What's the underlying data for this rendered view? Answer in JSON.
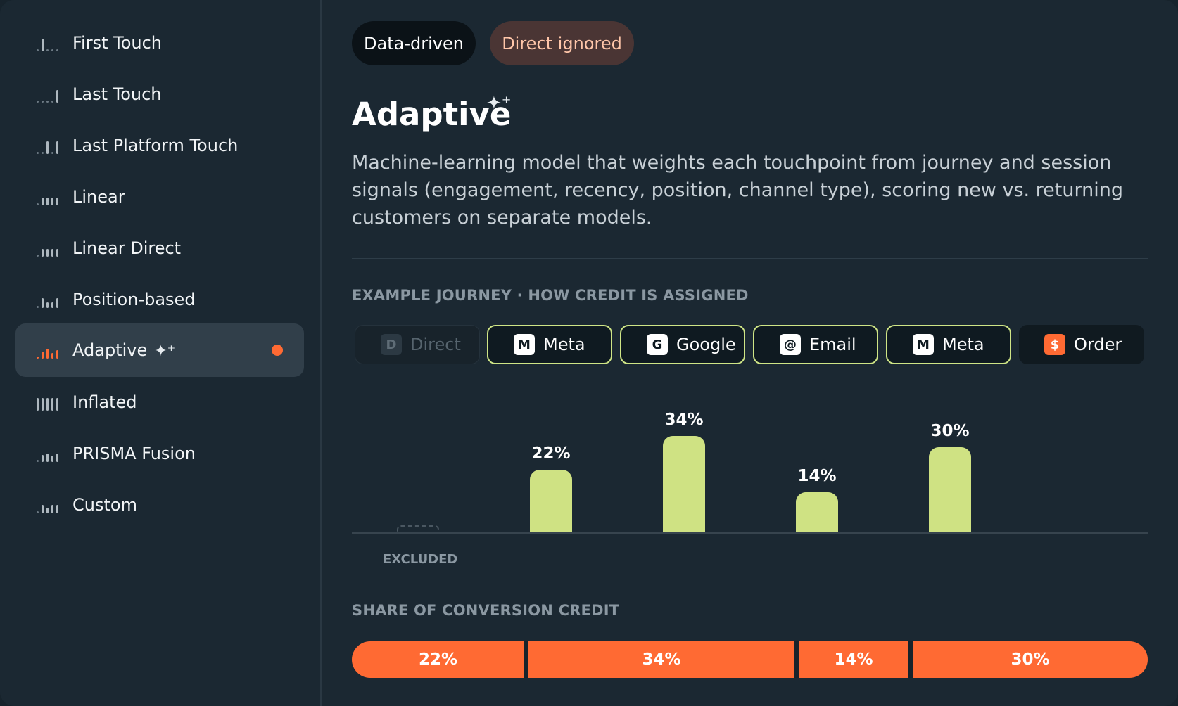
{
  "sidebar": {
    "items": [
      {
        "label": "First Touch",
        "icon": "first-touch-bars-icon"
      },
      {
        "label": "Last Touch",
        "icon": "last-touch-bars-icon"
      },
      {
        "label": "Last Platform Touch",
        "icon": "last-platform-touch-bars-icon"
      },
      {
        "label": "Linear",
        "icon": "linear-bars-icon"
      },
      {
        "label": "Linear Direct",
        "icon": "linear-direct-bars-icon"
      },
      {
        "label": "Position-based",
        "icon": "position-based-bars-icon"
      },
      {
        "label": "Adaptive",
        "icon": "adaptive-bars-icon",
        "selected": true,
        "sparkle": "✦⁺"
      },
      {
        "label": "Inflated",
        "icon": "inflated-bars-icon"
      },
      {
        "label": "PRISMA Fusion",
        "icon": "prisma-fusion-bars-icon"
      },
      {
        "label": "Custom",
        "icon": "custom-bars-icon"
      }
    ]
  },
  "main": {
    "tags": [
      "Data-driven",
      "Direct ignored"
    ],
    "title": "Adaptive",
    "title_sparkle": "✦⁺",
    "description": "Machine-learning model that weights each touchpoint from journey and session signals (engagement, recency, position, channel type), scoring new vs. returning customers on separate models.",
    "journey_label": "EXAMPLE JOURNEY · HOW CREDIT IS ASSIGNED",
    "journey": [
      {
        "badge": "D",
        "label": "Direct",
        "state": "excluded"
      },
      {
        "badge": "M",
        "label": "Meta",
        "state": "credited"
      },
      {
        "badge": "G",
        "label": "Google",
        "state": "credited"
      },
      {
        "badge": "@",
        "label": "Email",
        "state": "credited"
      },
      {
        "badge": "M",
        "label": "Meta",
        "state": "credited"
      },
      {
        "badge": "$",
        "label": "Order",
        "state": "conversion"
      }
    ],
    "excluded_label": "EXCLUDED",
    "share_label": "SHARE OF CONVERSION CREDIT"
  },
  "colors": {
    "accent": "#ff6a33",
    "credited_bar": "#cfe283",
    "credited_border": "#cfe586",
    "background": "#1b2832"
  },
  "chart_data": [
    {
      "type": "bar",
      "categories": [
        "Direct",
        "Meta",
        "Google",
        "Email",
        "Meta"
      ],
      "values": [
        0,
        22,
        34,
        14,
        30
      ],
      "data_labels": [
        "",
        "22%",
        "34%",
        "14%",
        "30%"
      ],
      "unit": "%",
      "ylim": [
        0,
        40
      ],
      "grid": false
    },
    {
      "type": "bar",
      "orientation": "horizontal-stacked",
      "categories": [
        "Meta",
        "Google",
        "Email",
        "Meta"
      ],
      "values": [
        22,
        34,
        14,
        30
      ],
      "data_labels": [
        "22%",
        "34%",
        "14%",
        "30%"
      ],
      "unit": "%"
    }
  ]
}
